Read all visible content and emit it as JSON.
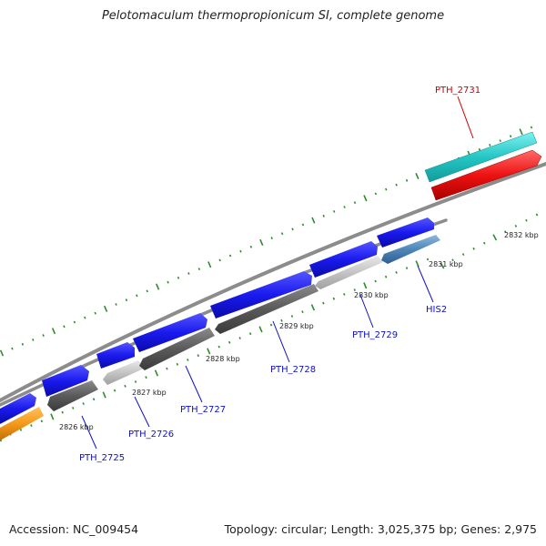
{
  "title": "Pelotomaculum thermopropionicum SI, complete genome",
  "footer": {
    "accession": "Accession: NC_009454",
    "summary": "Topology: circular; Length: 3,025,375 bp; Genes: 2,975"
  },
  "colors": {
    "forward_gene": "#1a1aee",
    "gray_gene": "#5a5a5a",
    "light_gray_gene": "#c4c4c4",
    "steel_gene": "#4f86b9",
    "orange_gene": "#f59a1c",
    "cyan_gene": "#26c6c6",
    "red_gene": "#ee1111",
    "backbone": "#8c8c8c",
    "tick": "#2e8b2e",
    "label_blue": "#1010c8",
    "label_red": "#cc0000"
  },
  "tick_labels": [
    "2826 kbp",
    "2827 kbp",
    "2828 kbp",
    "2829 kbp",
    "2830 kbp",
    "2831 kbp",
    "2832 kbp"
  ],
  "gene_labels": [
    {
      "text": "PTH_2725",
      "color": "blue"
    },
    {
      "text": "PTH_2726",
      "color": "blue"
    },
    {
      "text": "PTH_2727",
      "color": "blue"
    },
    {
      "text": "PTH_2728",
      "color": "blue"
    },
    {
      "text": "PTH_2729",
      "color": "blue"
    },
    {
      "text": "HIS2",
      "color": "blue"
    },
    {
      "text": "PTH_2731",
      "color": "red"
    }
  ]
}
